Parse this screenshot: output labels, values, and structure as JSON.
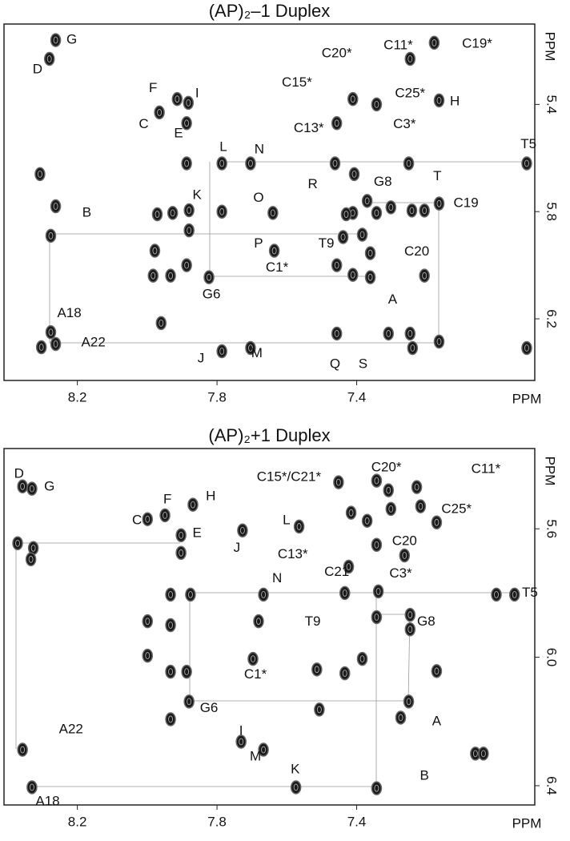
{
  "chart_data": [
    {
      "type": "scatter",
      "title": "(AP)₂–1 Duplex",
      "xlabel": "PPM",
      "ylabel": "PPM",
      "color": "#1a1a1a",
      "xlim": [
        8.41,
        6.89
      ],
      "ylim": [
        6.43,
        5.1
      ],
      "xticks": [
        8.2,
        7.8,
        7.4
      ],
      "yticks": [
        5.4,
        5.8,
        6.2
      ],
      "x": [
        8.262,
        8.28,
        7.914,
        7.882,
        7.965,
        7.887,
        7.178,
        7.247,
        7.411,
        7.343,
        7.164,
        7.457,
        8.307,
        7.887,
        7.786,
        7.704,
        7.462,
        7.251,
        6.913,
        8.262,
        8.276,
        7.971,
        7.927,
        7.88,
        7.88,
        7.786,
        7.64,
        7.407,
        7.37,
        7.411,
        7.43,
        7.384,
        7.343,
        7.302,
        7.242,
        7.206,
        7.164,
        7.439,
        7.361,
        7.636,
        7.978,
        7.983,
        7.933,
        7.887,
        7.823,
        7.457,
        7.411,
        7.361,
        7.206,
        7.96,
        8.276,
        8.303,
        8.262,
        7.457,
        7.309,
        7.247,
        7.164,
        7.24,
        6.913,
        7.704,
        7.786
      ],
      "y": [
        5.16,
        5.23,
        5.38,
        5.394,
        5.43,
        5.47,
        5.17,
        5.23,
        5.38,
        5.4,
        5.385,
        5.47,
        5.66,
        5.62,
        5.62,
        5.62,
        5.62,
        5.62,
        5.62,
        5.78,
        5.89,
        5.81,
        5.805,
        5.795,
        5.87,
        5.8,
        5.805,
        5.66,
        5.76,
        5.805,
        5.81,
        5.886,
        5.805,
        5.784,
        5.796,
        5.796,
        5.77,
        5.895,
        5.955,
        5.946,
        5.946,
        6.039,
        6.039,
        6.0,
        6.045,
        6.0,
        6.036,
        6.045,
        6.039,
        6.216,
        6.25,
        6.306,
        6.294,
        6.255,
        6.255,
        6.255,
        6.285,
        6.309,
        6.309,
        6.309,
        6.321
      ],
      "annotations": [
        {
          "text": "G",
          "x": 8.216,
          "y": 5.16
        },
        {
          "text": "D",
          "x": 8.314,
          "y": 5.27
        },
        {
          "text": "F",
          "x": 7.983,
          "y": 5.34
        },
        {
          "text": "I",
          "x": 7.857,
          "y": 5.36
        },
        {
          "text": "C",
          "x": 8.01,
          "y": 5.475
        },
        {
          "text": "E",
          "x": 7.91,
          "y": 5.51
        },
        {
          "text": "C20*",
          "x": 7.457,
          "y": 5.21
        },
        {
          "text": "C11*",
          "x": 7.281,
          "y": 5.18
        },
        {
          "text": "C19*",
          "x": 7.055,
          "y": 5.175
        },
        {
          "text": "C15*",
          "x": 7.571,
          "y": 5.32
        },
        {
          "text": "C25*",
          "x": 7.247,
          "y": 5.36
        },
        {
          "text": "H",
          "x": 7.119,
          "y": 5.39
        },
        {
          "text": "C13*",
          "x": 7.537,
          "y": 5.49
        },
        {
          "text": "C3*",
          "x": 7.263,
          "y": 5.475
        },
        {
          "text": "L",
          "x": 7.782,
          "y": 5.56
        },
        {
          "text": "N",
          "x": 7.679,
          "y": 5.57
        },
        {
          "text": "T5",
          "x": 6.908,
          "y": 5.55
        },
        {
          "text": "R",
          "x": 7.526,
          "y": 5.7
        },
        {
          "text": "G8",
          "x": 7.325,
          "y": 5.69
        },
        {
          "text": "T",
          "x": 7.169,
          "y": 5.67
        },
        {
          "text": "K",
          "x": 7.857,
          "y": 5.74
        },
        {
          "text": "O",
          "x": 7.681,
          "y": 5.75
        },
        {
          "text": "C19",
          "x": 7.087,
          "y": 5.77
        },
        {
          "text": "B",
          "x": 8.173,
          "y": 5.805
        },
        {
          "text": "T9",
          "x": 7.487,
          "y": 5.92
        },
        {
          "text": "P",
          "x": 7.681,
          "y": 5.92
        },
        {
          "text": "C20",
          "x": 7.228,
          "y": 5.95
        },
        {
          "text": "C1*",
          "x": 7.628,
          "y": 6.01
        },
        {
          "text": "G6",
          "x": 7.816,
          "y": 6.11
        },
        {
          "text": "A",
          "x": 7.297,
          "y": 6.13
        },
        {
          "text": "A18",
          "x": 8.223,
          "y": 6.18
        },
        {
          "text": "A22",
          "x": 8.154,
          "y": 6.29
        },
        {
          "text": "J",
          "x": 7.846,
          "y": 6.35
        },
        {
          "text": "M",
          "x": 7.686,
          "y": 6.33
        },
        {
          "text": "Q",
          "x": 7.462,
          "y": 6.37
        },
        {
          "text": "S",
          "x": 7.382,
          "y": 6.37
        }
      ]
    },
    {
      "type": "scatter",
      "title": "(AP)₂+1 Duplex",
      "xlabel": "PPM",
      "ylabel": "PPM",
      "color": "#1a1a1a",
      "xlim": [
        8.41,
        6.89
      ],
      "ylim": [
        6.46,
        5.35
      ],
      "xticks": [
        8.2,
        7.8,
        7.4
      ],
      "yticks": [
        5.6,
        {
          "value": 6,
          "label": "6.0"
        },
        6.4
      ],
      "x": [
        8.357,
        8.33,
        7.999,
        7.949,
        7.869,
        7.903,
        7.903,
        7.727,
        7.565,
        8.371,
        8.326,
        8.333,
        7.933,
        7.876,
        7.667,
        7.434,
        7.338,
        7.0,
        6.948,
        7.999,
        7.933,
        7.681,
        7.343,
        7.247,
        7.247,
        7.999,
        7.933,
        7.887,
        7.697,
        7.514,
        7.434,
        7.384,
        7.171,
        7.343,
        7.263,
        7.171,
        7.423,
        7.88,
        7.251,
        7.933,
        7.507,
        7.274,
        8.357,
        7.06,
        7.037,
        8.33,
        7.343,
        7.574,
        7.731,
        7.667,
        7.452,
        7.343,
        7.309,
        7.302,
        7.228,
        7.217,
        7.37,
        7.416
      ],
      "y": [
        5.468,
        5.475,
        5.57,
        5.558,
        5.525,
        5.62,
        5.675,
        5.605,
        5.593,
        5.645,
        5.66,
        5.695,
        5.805,
        5.805,
        5.805,
        5.8,
        5.795,
        5.805,
        5.805,
        5.888,
        5.9,
        5.888,
        5.875,
        5.868,
        5.913,
        5.995,
        6.045,
        6.045,
        6.005,
        6.038,
        6.05,
        6.005,
        6.043,
        5.65,
        5.683,
        5.58,
        5.718,
        6.138,
        6.138,
        6.193,
        6.163,
        6.188,
        6.288,
        6.3,
        6.3,
        6.405,
        6.408,
        6.405,
        6.263,
        6.288,
        5.455,
        5.45,
        5.48,
        5.538,
        5.47,
        5.53,
        5.575,
        5.55
      ],
      "annotations": [
        {
          "text": "D",
          "x": 8.367,
          "y": 5.43
        },
        {
          "text": "G",
          "x": 8.28,
          "y": 5.47
        },
        {
          "text": "C",
          "x": 8.029,
          "y": 5.575
        },
        {
          "text": "F",
          "x": 7.942,
          "y": 5.51
        },
        {
          "text": "H",
          "x": 7.818,
          "y": 5.5
        },
        {
          "text": "E",
          "x": 7.857,
          "y": 5.615
        },
        {
          "text": "L",
          "x": 7.601,
          "y": 5.575
        },
        {
          "text": "J",
          "x": 7.743,
          "y": 5.66
        },
        {
          "text": "C15*/C21*",
          "x": 7.594,
          "y": 5.44
        },
        {
          "text": "C20*",
          "x": 7.315,
          "y": 5.41
        },
        {
          "text": "C11*",
          "x": 7.03,
          "y": 5.415
        },
        {
          "text": "C25*",
          "x": 7.114,
          "y": 5.54
        },
        {
          "text": "C20",
          "x": 7.263,
          "y": 5.64
        },
        {
          "text": "C13*",
          "x": 7.583,
          "y": 5.68
        },
        {
          "text": "C21",
          "x": 7.457,
          "y": 5.735
        },
        {
          "text": "C3*",
          "x": 7.274,
          "y": 5.74
        },
        {
          "text": "N",
          "x": 7.628,
          "y": 5.755
        },
        {
          "text": "T5",
          "x": 6.904,
          "y": 5.8
        },
        {
          "text": "T9",
          "x": 7.526,
          "y": 5.89
        },
        {
          "text": "G8",
          "x": 7.201,
          "y": 5.89
        },
        {
          "text": "C1*",
          "x": 7.69,
          "y": 6.055
        },
        {
          "text": "G6",
          "x": 7.823,
          "y": 6.16
        },
        {
          "text": "A",
          "x": 7.171,
          "y": 6.2
        },
        {
          "text": "A22",
          "x": 8.218,
          "y": 6.225
        },
        {
          "text": "I",
          "x": 7.731,
          "y": 6.23
        },
        {
          "text": "M",
          "x": 7.69,
          "y": 6.31
        },
        {
          "text": "K",
          "x": 7.576,
          "y": 6.35
        },
        {
          "text": "B",
          "x": 7.206,
          "y": 6.37
        },
        {
          "text": "A18",
          "x": 8.285,
          "y": 6.45
        }
      ]
    }
  ]
}
